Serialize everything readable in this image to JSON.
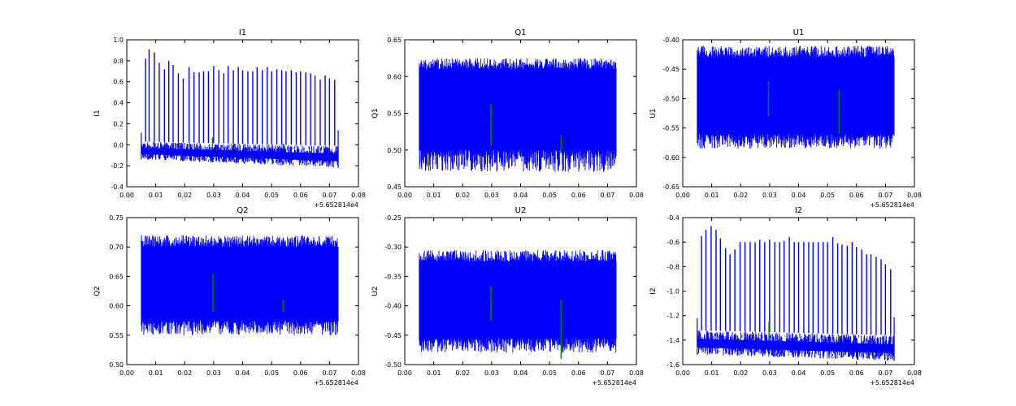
{
  "chart_data": [
    {
      "type": "line",
      "title": "I1",
      "ylabel": "I1",
      "xlabel": "",
      "x_offset_label": "+5.652814e4",
      "xlim": [
        0.0,
        0.08
      ],
      "ylim": [
        -0.4,
        1.0
      ],
      "x_ticks": [
        "0.00",
        "0.01",
        "0.02",
        "0.03",
        "0.04",
        "0.05",
        "0.06",
        "0.07",
        "0.08"
      ],
      "y_ticks": [
        "-0.4",
        "-0.2",
        "0.0",
        "0.2",
        "0.4",
        "0.6",
        "0.8",
        "1.0"
      ],
      "x_range": [
        0.005,
        0.073
      ],
      "grid": false,
      "series": [
        {
          "color": "#0000ff",
          "baseline_band": {
            "start": [
              -0.14,
              0.03
            ],
            "end": [
              -0.22,
              -0.01
            ]
          },
          "spikes": [
            {
              "x": 0.0065,
              "y": 0.82
            },
            {
              "x": 0.0077,
              "y": 0.91
            },
            {
              "x": 0.0095,
              "y": 0.88
            },
            {
              "x": 0.0112,
              "y": 0.78
            },
            {
              "x": 0.013,
              "y": 0.72
            },
            {
              "x": 0.0145,
              "y": 0.8
            },
            {
              "x": 0.016,
              "y": 0.76
            },
            {
              "x": 0.0178,
              "y": 0.68
            },
            {
              "x": 0.0195,
              "y": 0.63
            },
            {
              "x": 0.0215,
              "y": 0.74
            },
            {
              "x": 0.0232,
              "y": 0.69
            },
            {
              "x": 0.025,
              "y": 0.69
            },
            {
              "x": 0.0265,
              "y": 0.7
            },
            {
              "x": 0.0282,
              "y": 0.7
            },
            {
              "x": 0.03,
              "y": 0.75
            },
            {
              "x": 0.0318,
              "y": 0.71
            },
            {
              "x": 0.0335,
              "y": 0.68
            },
            {
              "x": 0.035,
              "y": 0.75
            },
            {
              "x": 0.0368,
              "y": 0.71
            },
            {
              "x": 0.0385,
              "y": 0.74
            },
            {
              "x": 0.04,
              "y": 0.71
            },
            {
              "x": 0.0418,
              "y": 0.7
            },
            {
              "x": 0.0435,
              "y": 0.7
            },
            {
              "x": 0.045,
              "y": 0.74
            },
            {
              "x": 0.0468,
              "y": 0.71
            },
            {
              "x": 0.0485,
              "y": 0.74
            },
            {
              "x": 0.05,
              "y": 0.7
            },
            {
              "x": 0.0518,
              "y": 0.72
            },
            {
              "x": 0.0535,
              "y": 0.71
            },
            {
              "x": 0.055,
              "y": 0.7
            },
            {
              "x": 0.0568,
              "y": 0.71
            },
            {
              "x": 0.0585,
              "y": 0.69
            },
            {
              "x": 0.06,
              "y": 0.7
            },
            {
              "x": 0.0618,
              "y": 0.69
            },
            {
              "x": 0.0635,
              "y": 0.68
            },
            {
              "x": 0.065,
              "y": 0.66
            },
            {
              "x": 0.0668,
              "y": 0.62
            },
            {
              "x": 0.0685,
              "y": 0.66
            },
            {
              "x": 0.07,
              "y": 0.63
            },
            {
              "x": 0.0718,
              "y": 0.62
            }
          ]
        },
        {
          "color": "#008000",
          "segments": [
            {
              "x": 0.0296,
              "y0": -0.02,
              "y1": 0.07
            },
            {
              "x": 0.054,
              "y0": -0.04,
              "y1": 0.01
            }
          ]
        }
      ]
    },
    {
      "type": "line",
      "title": "Q1",
      "ylabel": "Q1",
      "xlabel": "",
      "x_offset_label": "",
      "xlim": [
        0.0,
        0.08
      ],
      "ylim": [
        0.45,
        0.65
      ],
      "x_ticks": [
        "0.00",
        "0.01",
        "0.02",
        "0.03",
        "0.04",
        "0.05",
        "0.06",
        "0.07",
        "0.08"
      ],
      "y_ticks": [
        "0.45",
        "0.50",
        "0.55",
        "0.60",
        "0.65"
      ],
      "x_range": [
        0.005,
        0.073
      ],
      "grid": false,
      "series": [
        {
          "color": "#0000ff",
          "dense_band": {
            "core": [
              0.5,
              0.61
            ],
            "spread": [
              0.47,
              0.625
            ]
          }
        },
        {
          "color": "#008000",
          "segments": [
            {
              "x": 0.0298,
              "y0": 0.505,
              "y1": 0.562
            },
            {
              "x": 0.054,
              "y0": 0.5,
              "y1": 0.52
            }
          ]
        }
      ]
    },
    {
      "type": "line",
      "title": "U1",
      "ylabel": "U1",
      "xlabel": "",
      "x_offset_label": "+5.652814e4",
      "xlim": [
        0.0,
        0.08
      ],
      "ylim": [
        -0.65,
        -0.4
      ],
      "x_ticks": [
        "0.00",
        "0.01",
        "0.02",
        "0.03",
        "0.04",
        "0.05",
        "0.06",
        "0.07",
        "0.08"
      ],
      "y_ticks": [
        "-0.65",
        "-0.60",
        "-0.55",
        "-0.50",
        "-0.45",
        "-0.40"
      ],
      "x_range": [
        0.005,
        0.073
      ],
      "grid": false,
      "series": [
        {
          "color": "#0000ff",
          "dense_band": {
            "core": [
              -0.56,
              -0.43
            ],
            "spread": [
              -0.585,
              -0.41
            ]
          }
        },
        {
          "color": "#008000",
          "segments": [
            {
              "x": 0.0296,
              "y0": -0.53,
              "y1": -0.47
            },
            {
              "x": 0.054,
              "y0": -0.56,
              "y1": -0.485
            }
          ]
        }
      ]
    },
    {
      "type": "line",
      "title": "Q2",
      "ylabel": "Q2",
      "xlabel": "",
      "x_offset_label": "+5.652814e4",
      "xlim": [
        0.0,
        0.08
      ],
      "ylim": [
        0.5,
        0.75
      ],
      "x_ticks": [
        "0.00",
        "0.01",
        "0.02",
        "0.03",
        "0.04",
        "0.05",
        "0.06",
        "0.07",
        "0.08"
      ],
      "y_ticks": [
        "0.50",
        "0.55",
        "0.60",
        "0.65",
        "0.70",
        "0.75"
      ],
      "x_range": [
        0.005,
        0.073
      ],
      "grid": false,
      "series": [
        {
          "color": "#0000ff",
          "dense_band": {
            "core": [
              0.575,
              0.7
            ],
            "spread": [
              0.55,
              0.72
            ]
          }
        },
        {
          "color": "#008000",
          "segments": [
            {
              "x": 0.0298,
              "y0": 0.59,
              "y1": 0.655
            },
            {
              "x": 0.054,
              "y0": 0.59,
              "y1": 0.61
            }
          ]
        }
      ]
    },
    {
      "type": "line",
      "title": "U2",
      "ylabel": "U2",
      "xlabel": "",
      "x_offset_label": "+5.652814e4",
      "xlim": [
        0.0,
        0.08
      ],
      "ylim": [
        -0.5,
        -0.25
      ],
      "x_ticks": [
        "0.00",
        "0.01",
        "0.02",
        "0.03",
        "0.04",
        "0.05",
        "0.06",
        "0.07",
        "0.08"
      ],
      "y_ticks": [
        "-0.50",
        "-0.45",
        "-0.40",
        "-0.35",
        "-0.30",
        "-0.25"
      ],
      "x_range": [
        0.005,
        0.073
      ],
      "grid": false,
      "series": [
        {
          "color": "#0000ff",
          "dense_band": {
            "core": [
              -0.455,
              -0.325
            ],
            "spread": [
              -0.48,
              -0.305
            ]
          }
        },
        {
          "color": "#008000",
          "segments": [
            {
              "x": 0.0298,
              "y0": -0.425,
              "y1": -0.367
            },
            {
              "x": 0.054,
              "y0": -0.49,
              "y1": -0.39
            }
          ]
        }
      ]
    },
    {
      "type": "line",
      "title": "I2",
      "ylabel": "I2",
      "xlabel": "",
      "x_offset_label": "+5.652814e4",
      "xlim": [
        0.0,
        0.08
      ],
      "ylim": [
        -1.6,
        -0.4
      ],
      "x_ticks": [
        "0.00",
        "0.01",
        "0.02",
        "0.03",
        "0.04",
        "0.05",
        "0.06",
        "0.07",
        "0.08"
      ],
      "y_ticks": [
        "-1.6",
        "-1.4",
        "-1.2",
        "-1.0",
        "-0.8",
        "-0.6",
        "-0.4"
      ],
      "x_range": [
        0.005,
        0.073
      ],
      "grid": false,
      "series": [
        {
          "color": "#0000ff",
          "baseline_band": {
            "start": [
              -1.52,
              -1.32
            ],
            "end": [
              -1.57,
              -1.36
            ]
          },
          "spikes": [
            {
              "x": 0.0065,
              "y": -0.55
            },
            {
              "x": 0.008,
              "y": -0.5
            },
            {
              "x": 0.0098,
              "y": -0.47
            },
            {
              "x": 0.0115,
              "y": -0.5
            },
            {
              "x": 0.013,
              "y": -0.57
            },
            {
              "x": 0.0148,
              "y": -0.65
            },
            {
              "x": 0.0163,
              "y": -0.7
            },
            {
              "x": 0.018,
              "y": -0.66
            },
            {
              "x": 0.0198,
              "y": -0.6
            },
            {
              "x": 0.0215,
              "y": -0.6
            },
            {
              "x": 0.0233,
              "y": -0.6
            },
            {
              "x": 0.025,
              "y": -0.6
            },
            {
              "x": 0.0266,
              "y": -0.58
            },
            {
              "x": 0.0283,
              "y": -0.6
            },
            {
              "x": 0.03,
              "y": -0.58
            },
            {
              "x": 0.0318,
              "y": -0.6
            },
            {
              "x": 0.0335,
              "y": -0.6
            },
            {
              "x": 0.035,
              "y": -0.59
            },
            {
              "x": 0.0368,
              "y": -0.56
            },
            {
              "x": 0.0385,
              "y": -0.6
            },
            {
              "x": 0.04,
              "y": -0.6
            },
            {
              "x": 0.0418,
              "y": -0.6
            },
            {
              "x": 0.0435,
              "y": -0.6
            },
            {
              "x": 0.045,
              "y": -0.6
            },
            {
              "x": 0.0468,
              "y": -0.6
            },
            {
              "x": 0.0485,
              "y": -0.6
            },
            {
              "x": 0.05,
              "y": -0.6
            },
            {
              "x": 0.0518,
              "y": -0.56
            },
            {
              "x": 0.0535,
              "y": -0.61
            },
            {
              "x": 0.055,
              "y": -0.62
            },
            {
              "x": 0.0568,
              "y": -0.63
            },
            {
              "x": 0.0585,
              "y": -0.6
            },
            {
              "x": 0.06,
              "y": -0.64
            },
            {
              "x": 0.0618,
              "y": -0.66
            },
            {
              "x": 0.0635,
              "y": -0.7
            },
            {
              "x": 0.065,
              "y": -0.7
            },
            {
              "x": 0.0668,
              "y": -0.72
            },
            {
              "x": 0.0685,
              "y": -0.74
            },
            {
              "x": 0.07,
              "y": -0.78
            },
            {
              "x": 0.0718,
              "y": -0.82
            }
          ]
        },
        {
          "color": "#008000",
          "segments": [
            {
              "x": 0.0298,
              "y0": -1.38,
              "y1": -1.25
            },
            {
              "x": 0.054,
              "y0": -1.42,
              "y1": -1.37
            }
          ]
        }
      ]
    }
  ]
}
